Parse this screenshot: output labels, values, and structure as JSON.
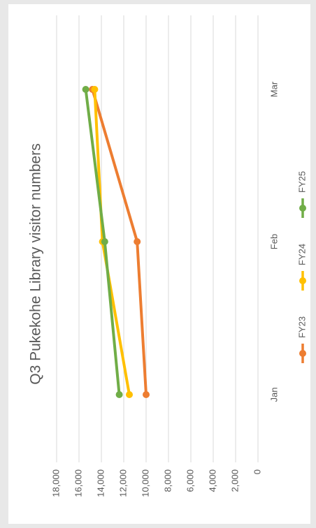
{
  "chart_data": {
    "type": "line",
    "title": "Q3 Pukekohe Library visitor numbers",
    "categories": [
      "Jan",
      "Feb",
      "Mar"
    ],
    "ylim": [
      0,
      18000
    ],
    "yticks": [
      "0",
      "2,000",
      "4,000",
      "6,000",
      "8,000",
      "10,000",
      "12,000",
      "14,000",
      "16,000",
      "18,000"
    ],
    "grid": true,
    "legend_position": "bottom",
    "series": [
      {
        "name": "FY23",
        "color": "#ED7D31",
        "values": [
          10000,
          10800,
          14800
        ]
      },
      {
        "name": "FY24",
        "color": "#FFC000",
        "values": [
          11500,
          13900,
          14600
        ]
      },
      {
        "name": "FY25",
        "color": "#70AD47",
        "values": [
          12400,
          13700,
          15400
        ]
      }
    ]
  }
}
